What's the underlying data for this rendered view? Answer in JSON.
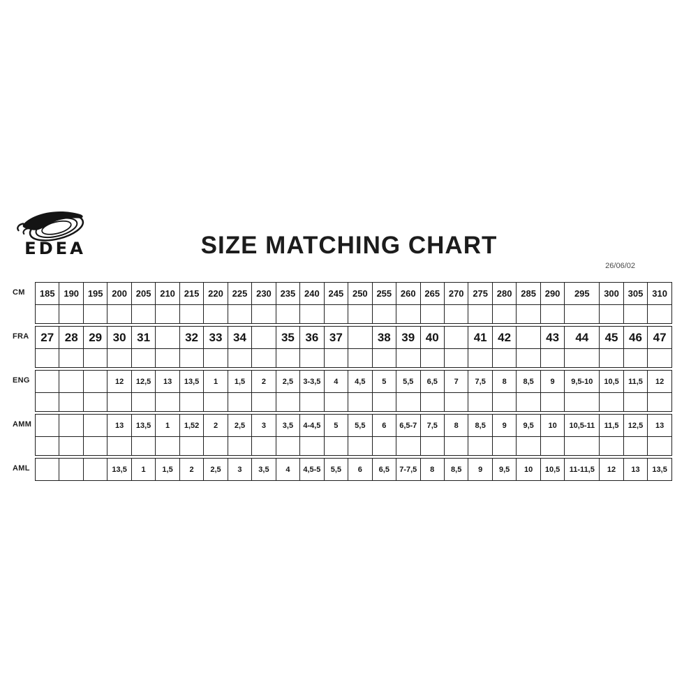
{
  "logo": {
    "brand": "EDEA"
  },
  "header": {
    "title": "SIZE MATCHING CHART",
    "date": "26/06/02"
  },
  "chart_data": {
    "type": "table",
    "title": "SIZE MATCHING CHART",
    "rows": [
      {
        "label": "CM",
        "values": [
          "185",
          "190",
          "195",
          "200",
          "205",
          "210",
          "215",
          "220",
          "225",
          "230",
          "235",
          "240",
          "245",
          "250",
          "255",
          "260",
          "265",
          "270",
          "275",
          "280",
          "285",
          "290",
          "295",
          "300",
          "305",
          "310"
        ]
      },
      {
        "label": "FRA",
        "values": [
          "27",
          "28",
          "29",
          "30",
          "31",
          "",
          "32",
          "33",
          "34",
          "",
          "35",
          "36",
          "37",
          "",
          "38",
          "39",
          "40",
          "",
          "41",
          "42",
          "",
          "43",
          "44",
          "45",
          "46",
          "47"
        ]
      },
      {
        "label": "ENG",
        "values": [
          "",
          "",
          "",
          "12",
          "12,5",
          "13",
          "13,5",
          "1",
          "1,5",
          "2",
          "2,5",
          "3-3,5",
          "4",
          "4,5",
          "5",
          "5,5",
          "6,5",
          "7",
          "7,5",
          "8",
          "8,5",
          "9",
          "9,5-10",
          "10,5",
          "11,5",
          "12"
        ]
      },
      {
        "label": "AMM",
        "values": [
          "",
          "",
          "",
          "13",
          "13,5",
          "1",
          "1,52",
          "2",
          "2,5",
          "3",
          "3,5",
          "4-4,5",
          "5",
          "5,5",
          "6",
          "6,5-7",
          "7,5",
          "8",
          "8,5",
          "9",
          "9,5",
          "10",
          "10,5-11",
          "11,5",
          "12,5",
          "13"
        ]
      },
      {
        "label": "AML",
        "values": [
          "",
          "",
          "",
          "13,5",
          "1",
          "1,5",
          "2",
          "2,5",
          "3",
          "3,5",
          "4",
          "4,5-5",
          "5,5",
          "6",
          "6,5",
          "7-7,5",
          "8",
          "8,5",
          "9",
          "9,5",
          "10",
          "10,5",
          "11-11,5",
          "12",
          "13",
          "13,5"
        ]
      }
    ]
  }
}
